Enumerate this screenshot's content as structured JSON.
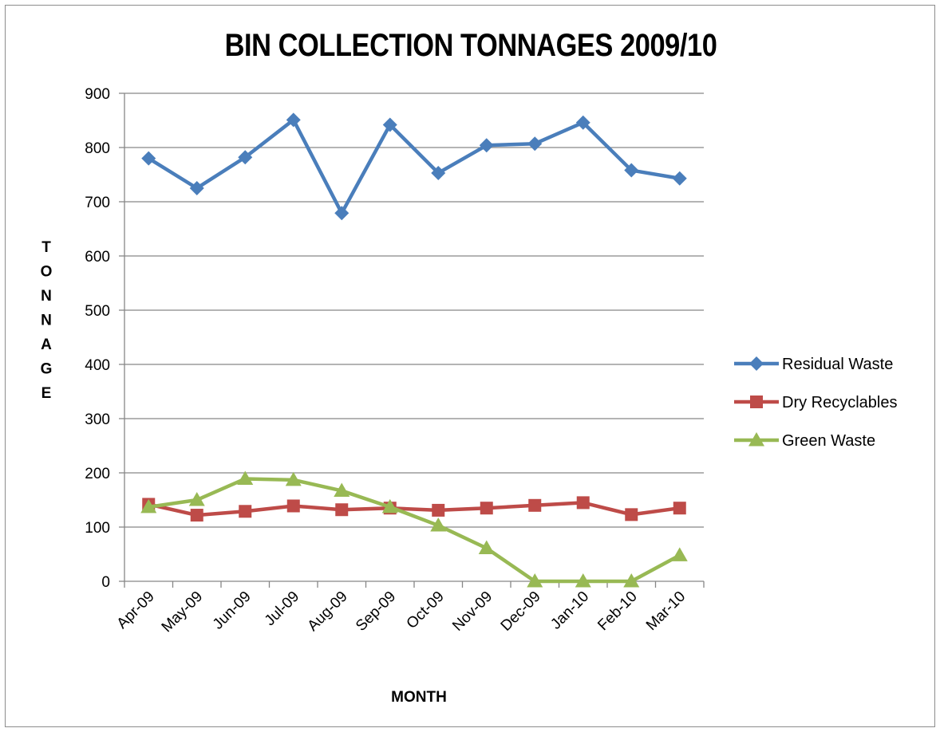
{
  "chart_data": {
    "type": "line",
    "title": "BIN COLLECTION TONNAGES 2009/10",
    "xlabel": "MONTH",
    "ylabel": "TONNAGE",
    "ylim": [
      0,
      900
    ],
    "yticks": [
      "0",
      "100",
      "200",
      "300",
      "400",
      "500",
      "600",
      "700",
      "800",
      "900"
    ],
    "grid": "horizontal",
    "legend_position": "right",
    "categories": [
      "Apr-09",
      "May-09",
      "Jun-09",
      "Jul-09",
      "Aug-09",
      "Sep-09",
      "Oct-09",
      "Nov-09",
      "Dec-09",
      "Jan-10",
      "Feb-10",
      "Mar-10"
    ],
    "series": [
      {
        "name": "Residual Waste",
        "color": "#4a7ebb",
        "marker": "diamond",
        "values": [
          780,
          725,
          782,
          851,
          679,
          842,
          753,
          804,
          807,
          846,
          758,
          743
        ]
      },
      {
        "name": "Dry Recyclables",
        "color": "#be4b48",
        "marker": "square",
        "values": [
          142,
          122,
          129,
          139,
          132,
          135,
          131,
          135,
          140,
          145,
          123,
          135
        ]
      },
      {
        "name": "Green Waste",
        "color": "#98b954",
        "marker": "triangle",
        "values": [
          137,
          150,
          189,
          187,
          167,
          137,
          103,
          61,
          0,
          0,
          0,
          48
        ]
      }
    ]
  }
}
